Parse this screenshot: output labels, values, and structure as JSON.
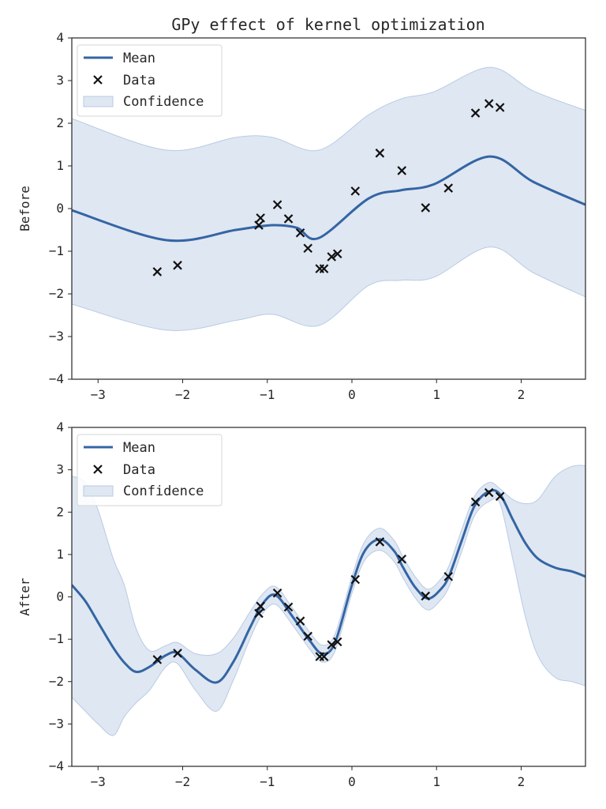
{
  "title": "GPy effect of kernel optimization",
  "colors": {
    "mean": "#3465a4",
    "confidence": "#dfe7f2",
    "confidence_edge": "#b9cbe3",
    "data": "#111111"
  },
  "chart_data": [
    {
      "type": "line",
      "ylabel": "Before",
      "xlim": [
        -3.31,
        2.76
      ],
      "ylim": [
        -4,
        4
      ],
      "xticks": [
        -3,
        -2,
        -1,
        0,
        1,
        2
      ],
      "yticks": [
        -4,
        -3,
        -2,
        -1,
        0,
        1,
        2,
        3,
        4
      ],
      "grid": false,
      "legend": {
        "placement": "top-left",
        "entries": [
          "Mean",
          "Data",
          "Confidence"
        ]
      },
      "data": {
        "x": [
          -2.3,
          -2.06,
          -1.1,
          -1.08,
          -0.88,
          -0.75,
          -0.61,
          -0.52,
          -0.38,
          -0.33,
          -0.24,
          -0.17,
          0.04,
          0.33,
          0.59,
          0.87,
          1.14,
          1.46,
          1.62,
          1.75
        ],
        "y": [
          -1.48,
          -1.33,
          -0.39,
          -0.22,
          0.09,
          -0.24,
          -0.57,
          -0.93,
          -1.41,
          -1.41,
          -1.13,
          -1.06,
          0.41,
          1.3,
          0.89,
          0.02,
          0.48,
          2.24,
          2.46,
          2.37
        ]
      },
      "mean": {
        "x": [
          -3.31,
          -2.19,
          -1.37,
          -0.94,
          -0.65,
          -0.39,
          0.2,
          0.58,
          0.97,
          1.63,
          2.14,
          2.76
        ],
        "y": [
          -0.04,
          -0.74,
          -0.5,
          -0.39,
          -0.45,
          -0.69,
          0.24,
          0.43,
          0.57,
          1.22,
          0.63,
          0.09
        ]
      },
      "confidence": {
        "x": [
          -3.31,
          -2.19,
          -1.37,
          -0.94,
          -0.39,
          0.2,
          0.58,
          0.97,
          1.63,
          2.14,
          2.76
        ],
        "upper": [
          2.11,
          1.37,
          1.67,
          1.67,
          1.37,
          2.2,
          2.57,
          2.74,
          3.31,
          2.76,
          2.3
        ],
        "lower": [
          -2.24,
          -2.85,
          -2.62,
          -2.48,
          -2.74,
          -1.8,
          -1.68,
          -1.61,
          -0.9,
          -1.5,
          -2.07
        ]
      }
    },
    {
      "type": "line",
      "ylabel": "After",
      "xlim": [
        -3.31,
        2.76
      ],
      "ylim": [
        -4,
        4
      ],
      "xticks": [
        -3,
        -2,
        -1,
        0,
        1,
        2
      ],
      "yticks": [
        -4,
        -3,
        -2,
        -1,
        0,
        1,
        2,
        3,
        4
      ],
      "grid": false,
      "legend": {
        "placement": "top-left",
        "entries": [
          "Mean",
          "Data",
          "Confidence"
        ]
      },
      "data": {
        "x": [
          -2.3,
          -2.06,
          -1.1,
          -1.08,
          -0.88,
          -0.75,
          -0.61,
          -0.52,
          -0.38,
          -0.33,
          -0.24,
          -0.17,
          0.04,
          0.33,
          0.59,
          0.87,
          1.14,
          1.46,
          1.62,
          1.75
        ],
        "y": [
          -1.48,
          -1.33,
          -0.39,
          -0.22,
          0.09,
          -0.24,
          -0.57,
          -0.93,
          -1.41,
          -1.41,
          -1.13,
          -1.06,
          0.41,
          1.3,
          0.89,
          0.02,
          0.48,
          2.24,
          2.46,
          2.37
        ]
      },
      "mean": {
        "x": [
          -3.31,
          -3.15,
          -3.0,
          -2.82,
          -2.69,
          -2.55,
          -2.39,
          -2.2,
          -2.06,
          -1.85,
          -1.6,
          -1.4,
          -1.2,
          -1.05,
          -0.9,
          -0.7,
          -0.5,
          -0.35,
          -0.2,
          0.0,
          0.15,
          0.33,
          0.5,
          0.6,
          0.75,
          0.9,
          1.05,
          1.15,
          1.3,
          1.45,
          1.62,
          1.75,
          1.9,
          2.05,
          2.2,
          2.4,
          2.6,
          2.76
        ],
        "y": [
          0.28,
          -0.1,
          -0.6,
          -1.2,
          -1.55,
          -1.77,
          -1.65,
          -1.38,
          -1.33,
          -1.72,
          -2.02,
          -1.53,
          -0.71,
          -0.15,
          0.04,
          -0.47,
          -1.03,
          -1.34,
          -1.08,
          0.28,
          1.08,
          1.36,
          1.08,
          0.71,
          0.22,
          -0.04,
          0.18,
          0.5,
          1.34,
          2.15,
          2.49,
          2.42,
          1.83,
          1.27,
          0.9,
          0.69,
          0.6,
          0.48
        ]
      },
      "confidence": {
        "x": [
          -3.31,
          -3.15,
          -3.0,
          -2.82,
          -2.69,
          -2.55,
          -2.39,
          -2.2,
          -2.06,
          -1.85,
          -1.6,
          -1.4,
          -1.2,
          -1.05,
          -0.9,
          -0.7,
          -0.5,
          -0.35,
          -0.2,
          0.0,
          0.15,
          0.33,
          0.5,
          0.6,
          0.75,
          0.9,
          1.05,
          1.15,
          1.3,
          1.45,
          1.62,
          1.75,
          1.9,
          2.05,
          2.2,
          2.4,
          2.6,
          2.76
        ],
        "upper": [
          2.85,
          2.7,
          2.05,
          0.9,
          0.28,
          -0.75,
          -1.27,
          -1.15,
          -1.08,
          -1.34,
          -1.34,
          -0.97,
          -0.34,
          0.08,
          0.24,
          -0.27,
          -0.83,
          -1.14,
          -0.88,
          0.48,
          1.3,
          1.62,
          1.33,
          0.96,
          0.47,
          0.18,
          0.42,
          0.75,
          1.6,
          2.38,
          2.7,
          2.55,
          2.3,
          2.2,
          2.3,
          2.84,
          3.08,
          3.1
        ],
        "lower": [
          -2.37,
          -2.7,
          -3.0,
          -3.27,
          -2.83,
          -2.5,
          -2.2,
          -1.65,
          -1.58,
          -2.2,
          -2.7,
          -1.96,
          -0.97,
          -0.38,
          -0.18,
          -0.67,
          -1.23,
          -1.54,
          -1.28,
          0.08,
          0.86,
          1.1,
          0.83,
          0.46,
          -0.03,
          -0.31,
          -0.07,
          0.25,
          1.08,
          1.92,
          2.25,
          2.2,
          0.9,
          -0.47,
          -1.4,
          -1.9,
          -2.0,
          -2.1
        ]
      }
    }
  ]
}
